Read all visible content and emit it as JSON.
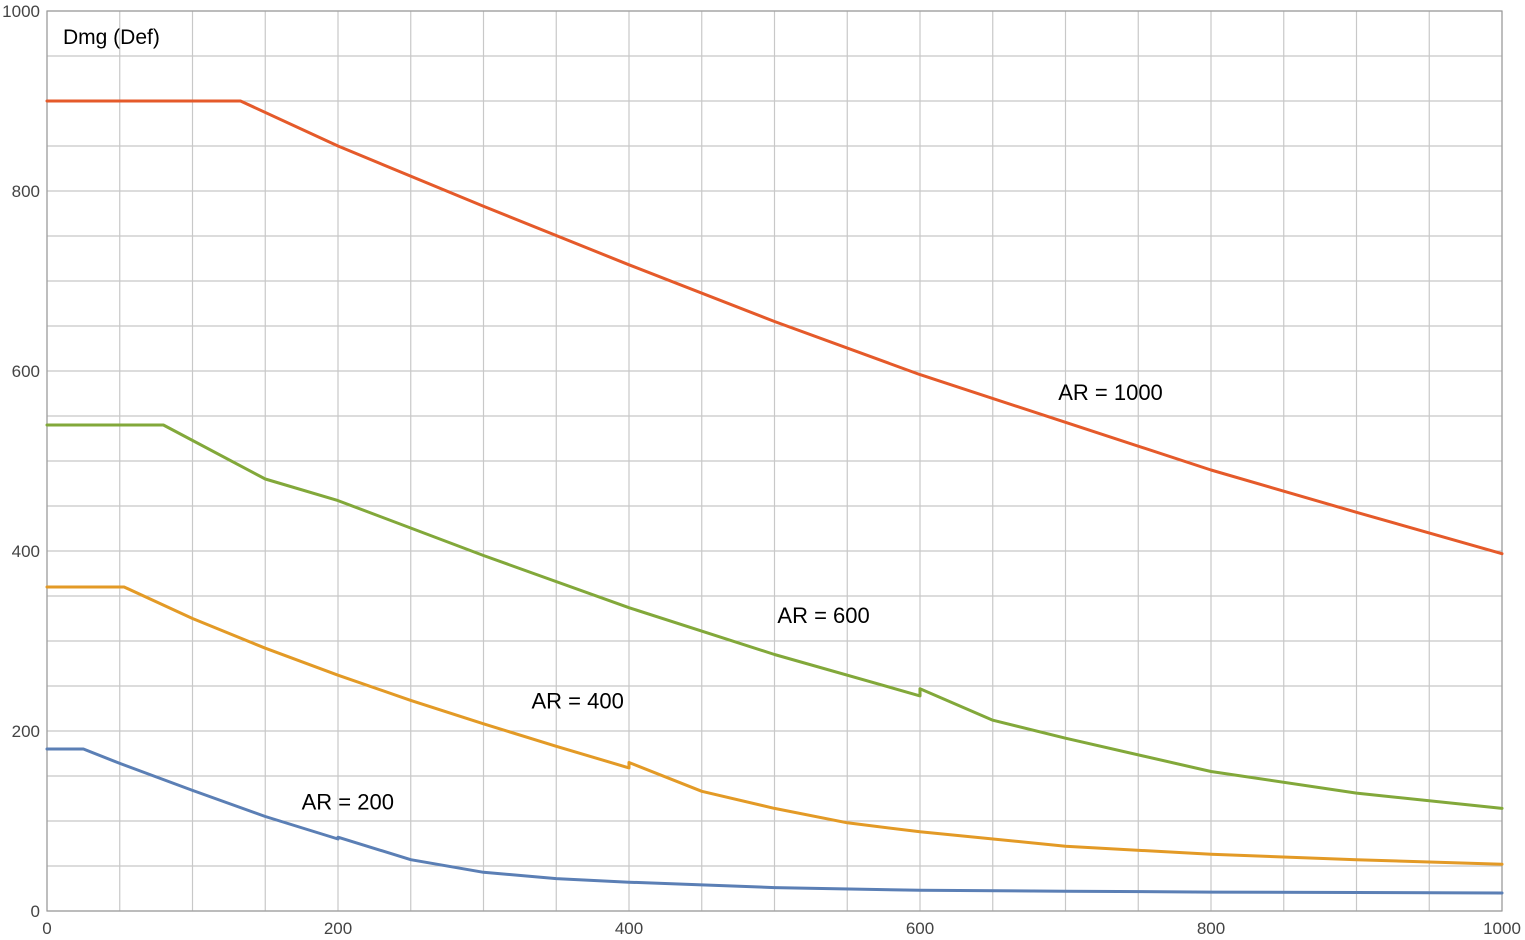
{
  "chart_data": {
    "type": "line",
    "ylabel": "Dmg (Def)",
    "xlabel": "",
    "xlim": [
      0,
      1000
    ],
    "ylim": [
      0,
      1000
    ],
    "x_ticks": [
      0,
      200,
      400,
      600,
      800,
      1000
    ],
    "y_ticks": [
      0,
      200,
      400,
      600,
      800,
      1000
    ],
    "x_tick_labels": [
      "0",
      "200",
      "400",
      "600",
      "800",
      "1000"
    ],
    "y_tick_labels": [
      "0",
      "200",
      "400",
      "600",
      "800",
      "1000"
    ],
    "grid": true,
    "grid_minor_step_x": 50,
    "grid_minor_step_y": 50,
    "series": [
      {
        "name": "AR = 200",
        "color": "#5b7fb5",
        "label_at": [
          175,
          113
        ],
        "x": [
          0,
          25,
          50,
          100,
          150,
          200,
          200,
          250,
          300,
          350,
          400,
          450,
          500,
          600,
          700,
          800,
          900,
          1000
        ],
        "y": [
          180,
          180,
          164,
          134,
          105,
          80,
          82,
          57,
          43,
          36,
          32,
          29,
          26,
          23,
          22,
          21,
          20.5,
          20
        ]
      },
      {
        "name": "AR = 400",
        "color": "#e39a26",
        "label_at": [
          333,
          225
        ],
        "x": [
          0,
          53,
          100,
          150,
          200,
          250,
          300,
          350,
          400,
          400,
          450,
          500,
          550,
          600,
          700,
          800,
          900,
          1000
        ],
        "y": [
          360,
          360,
          325,
          292,
          262,
          234,
          208,
          183,
          159,
          165,
          133,
          114,
          98,
          88,
          72,
          63,
          57,
          52
        ]
      },
      {
        "name": "AR = 600",
        "color": "#82a83a",
        "label_at": [
          502,
          320
        ],
        "x": [
          0,
          80,
          150,
          200,
          300,
          400,
          500,
          600,
          600,
          650,
          700,
          800,
          900,
          1000
        ],
        "y": [
          540,
          540,
          480,
          456,
          395,
          337,
          285,
          239,
          247,
          212,
          192,
          155,
          131,
          114
        ]
      },
      {
        "name": "AR = 1000",
        "color": "#e55a2a",
        "label_at": [
          695,
          568
        ],
        "x": [
          0,
          133,
          200,
          300,
          400,
          500,
          600,
          700,
          800,
          900,
          1000
        ],
        "y": [
          900,
          900,
          850,
          783,
          718,
          655,
          596,
          543,
          490,
          443,
          397
        ]
      }
    ]
  }
}
